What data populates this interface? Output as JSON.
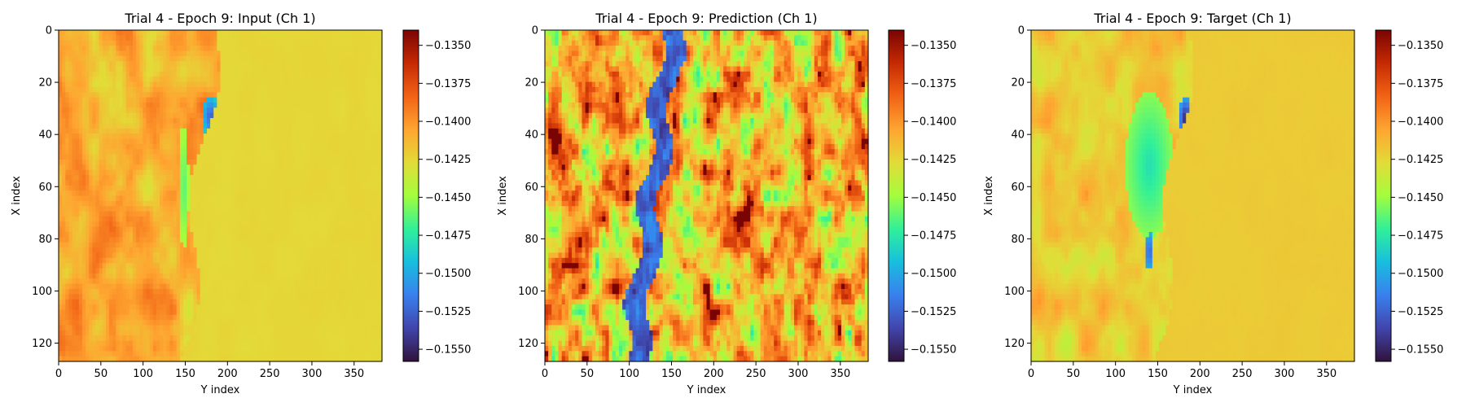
{
  "chart_data": [
    {
      "type": "heatmap",
      "title": "Trial 4 - Epoch 9: Input (Ch 1)",
      "xlabel": "Y index",
      "ylabel": "X index",
      "xlim": [
        0,
        383
      ],
      "ylim": [
        127,
        0
      ],
      "xticks": [
        "0",
        "50",
        "100",
        "150",
        "200",
        "250",
        "300",
        "350"
      ],
      "yticks": [
        "0",
        "20",
        "40",
        "60",
        "80",
        "100",
        "120"
      ],
      "colormap": "turbo",
      "color_range": [
        -0.1558,
        -0.134
      ],
      "colorbar_ticks": [
        "−0.1350",
        "−0.1375",
        "−0.1400",
        "−0.1425",
        "−0.1450",
        "−0.1475",
        "−0.1500",
        "−0.1525",
        "−0.1550"
      ]
    },
    {
      "type": "heatmap",
      "title": "Trial 4 - Epoch 9: Prediction (Ch 1)",
      "xlabel": "Y index",
      "ylabel": "X index",
      "xlim": [
        0,
        383
      ],
      "ylim": [
        127,
        0
      ],
      "xticks": [
        "0",
        "50",
        "100",
        "150",
        "200",
        "250",
        "300",
        "350"
      ],
      "yticks": [
        "0",
        "20",
        "40",
        "60",
        "80",
        "100",
        "120"
      ],
      "colormap": "turbo",
      "color_range": [
        -0.1558,
        -0.134
      ],
      "colorbar_ticks": [
        "−0.1350",
        "−0.1375",
        "−0.1400",
        "−0.1425",
        "−0.1450",
        "−0.1475",
        "−0.1500",
        "−0.1525",
        "−0.1550"
      ]
    },
    {
      "type": "heatmap",
      "title": "Trial 4 - Epoch 9: Target (Ch 1)",
      "xlabel": "Y index",
      "ylabel": "X index",
      "xlim": [
        0,
        383
      ],
      "ylim": [
        127,
        0
      ],
      "xticks": [
        "0",
        "50",
        "100",
        "150",
        "200",
        "250",
        "300",
        "350"
      ],
      "yticks": [
        "0",
        "20",
        "40",
        "60",
        "80",
        "100",
        "120"
      ],
      "colormap": "turbo",
      "color_range": [
        -0.1558,
        -0.134
      ],
      "colorbar_ticks": [
        "−0.1350",
        "−0.1375",
        "−0.1400",
        "−0.1425",
        "−0.1450",
        "−0.1475",
        "−0.1500",
        "−0.1525",
        "−0.1550"
      ]
    }
  ]
}
